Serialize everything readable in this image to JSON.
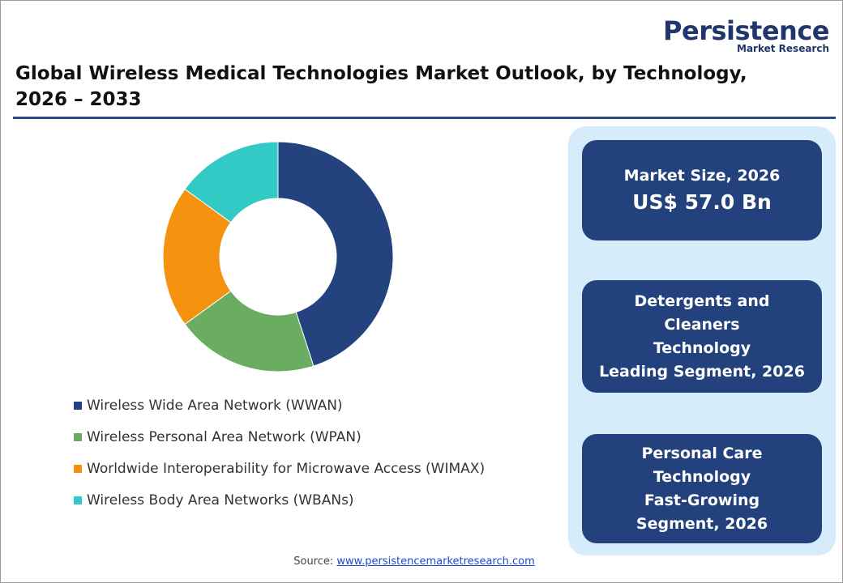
{
  "logo": {
    "name": "Persistence",
    "tagline": "Market Research"
  },
  "chart_data": {
    "type": "pie",
    "title": "Global Wireless Medical Technologies Market Outlook, by Technology, 2026 – 2033",
    "categories": [
      "Wireless Wide Area Network (WWAN)",
      "Wireless Personal Area Network (WPAN)",
      "Worldwide Interoperability for Microwave Access (WIMAX)",
      "Wireless Body Area Networks (WBANs)"
    ],
    "values": [
      45,
      20,
      20,
      15
    ],
    "colors": [
      "#24427e",
      "#6aad60",
      "#f5920f",
      "#33c9c4"
    ],
    "donut": true
  },
  "cards": [
    {
      "label": "Market Size, 2026",
      "value": "US$ 57.0 Bn"
    },
    {
      "label": "Detergents and Cleaners Technology",
      "value": "Leading Segment, 2026"
    },
    {
      "label": "Personal Care Technology",
      "value": "Fast-Growing Segment, 2026"
    }
  ],
  "source": {
    "label": "Source:",
    "link": "www.persistencemarketresearch.com"
  }
}
